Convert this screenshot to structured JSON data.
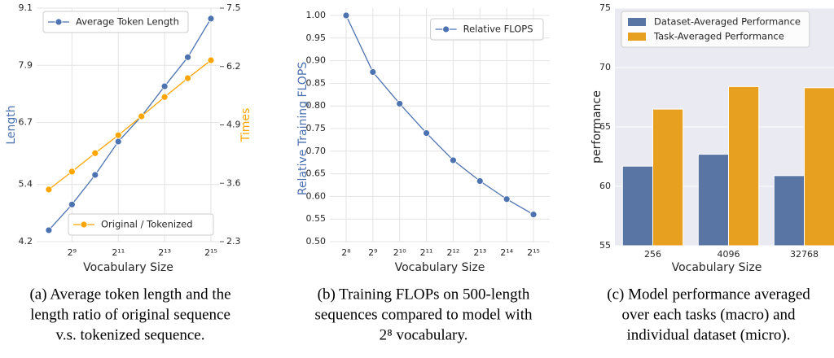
{
  "chart_data": [
    {
      "type": "line",
      "xscale": "log",
      "xbase": 2,
      "xlabel": "Vocabulary Size",
      "ylabel": "Length",
      "y2label": "Times",
      "x": [
        256,
        512,
        1024,
        2048,
        4096,
        8192,
        16384,
        32768
      ],
      "xlim": [
        178,
        42850
      ],
      "xticks": [
        {
          "value": 512,
          "label": "2⁹"
        },
        {
          "value": 2048,
          "label": "2¹¹"
        },
        {
          "value": 8192,
          "label": "2¹³"
        },
        {
          "value": 32768,
          "label": "2¹⁵"
        }
      ],
      "ylim": [
        4.2,
        9.1
      ],
      "yticks": [
        4.2,
        5.4,
        6.7,
        7.9,
        9.1
      ],
      "y2lim": [
        2.3,
        7.5
      ],
      "y2ticks": [
        2.3,
        3.6,
        4.9,
        6.2,
        7.5
      ],
      "grid": true,
      "series": [
        {
          "name": "Average Token Length",
          "color": "#4c72b0",
          "legend": "upper left",
          "values": [
            4.44,
            4.98,
            5.6,
            6.3,
            6.83,
            7.46,
            8.07,
            8.88
          ]
        },
        {
          "name": "Original / Tokenized",
          "color": "#ffa500",
          "axis": "y2",
          "legend": "lower right",
          "values": [
            3.46,
            3.86,
            4.27,
            4.67,
            5.09,
            5.52,
            5.94,
            6.34
          ]
        }
      ]
    },
    {
      "type": "line",
      "xscale": "log",
      "xbase": 2,
      "xlabel": "Vocabulary Size",
      "ylabel": "Relative Training FLOPS",
      "x": [
        256,
        512,
        1024,
        2048,
        4096,
        8192,
        16384,
        32768
      ],
      "xlim": [
        168,
        49940
      ],
      "xticks": [
        {
          "value": 256,
          "label": "2⁸"
        },
        {
          "value": 512,
          "label": "2⁹"
        },
        {
          "value": 1024,
          "label": "2¹⁰"
        },
        {
          "value": 2048,
          "label": "2¹¹"
        },
        {
          "value": 4096,
          "label": "2¹²"
        },
        {
          "value": 8192,
          "label": "2¹³"
        },
        {
          "value": 16384,
          "label": "2¹⁴"
        },
        {
          "value": 32768,
          "label": "2¹⁵"
        }
      ],
      "ylim": [
        0.5,
        1.0
      ],
      "yticks": [
        {
          "value": 0.5,
          "label": "0.50"
        },
        0.55,
        {
          "value": 0.6,
          "label": "0.60"
        },
        0.65,
        {
          "value": 0.7,
          "label": "0.70"
        },
        0.75,
        {
          "value": 0.8,
          "label": "0.80"
        },
        0.85,
        {
          "value": 0.9,
          "label": "0.90"
        },
        0.95,
        {
          "value": 1.0,
          "label": "1.00"
        }
      ],
      "grid": true,
      "legend": "upper right",
      "series": [
        {
          "name": "Relative FLOPS",
          "color": "#4c72b0",
          "values": [
            1.0,
            0.875,
            0.805,
            0.74,
            0.68,
            0.634,
            0.594,
            0.56
          ]
        }
      ]
    },
    {
      "type": "bar",
      "xlabel": "Vocabulary Size",
      "ylabel": "performance",
      "categories": [
        "256",
        "4096",
        "32768"
      ],
      "ylim": [
        55,
        75
      ],
      "yticks": [
        55,
        60,
        65,
        70,
        75
      ],
      "grid": true,
      "legend": "upper left",
      "series": [
        {
          "name": "Dataset-Averaged Performance",
          "color": "#5875a4",
          "values": [
            61.7,
            62.7,
            60.9
          ]
        },
        {
          "name": "Task-Averaged Performance",
          "color": "#e8a020",
          "values": [
            66.5,
            68.4,
            68.3
          ]
        }
      ]
    }
  ],
  "captions": [
    [
      "(a) Average token length and the",
      "length ratio of original sequence",
      "v.s. tokenized sequence."
    ],
    [
      "(b) Training FLOPs on 500-length",
      "sequences compared to model with",
      "2⁸ vocabulary."
    ],
    [
      "(c) Model performance averaged",
      "over each tasks (macro) and",
      "individual dataset (micro)."
    ]
  ]
}
